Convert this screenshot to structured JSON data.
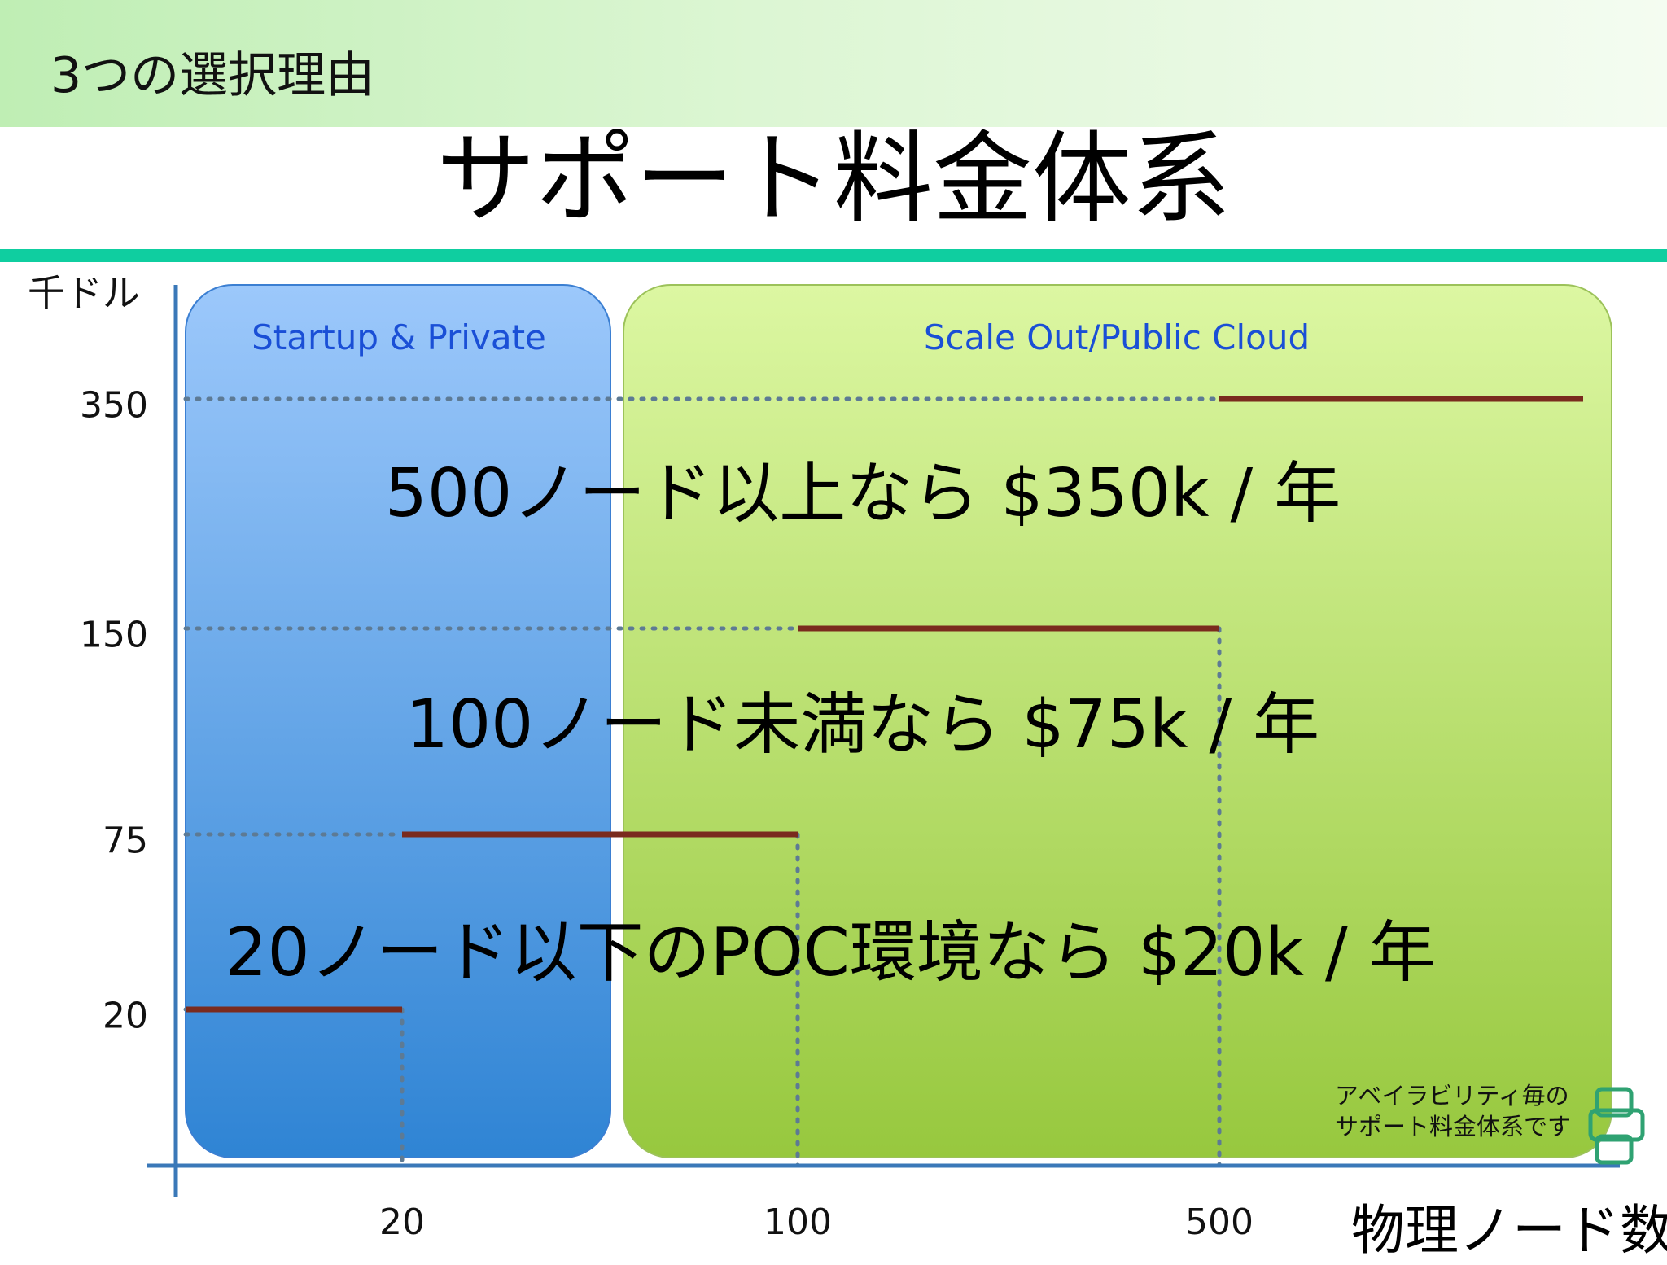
{
  "header": {
    "section_label": "3つの選択理由",
    "title": "サポート料金体系"
  },
  "chart_data": {
    "type": "line",
    "step": true,
    "xlabel": "物理ノード数",
    "ylabel": "千ドル",
    "x_ticks": [
      20,
      100,
      500
    ],
    "y_ticks": [
      20,
      75,
      150,
      350
    ],
    "grid": "dotted reference lines",
    "regions": [
      {
        "label": "Startup & Private",
        "color": "#4a97e8"
      },
      {
        "label": "Scale Out/Public Cloud",
        "color": "#b4dc6b"
      }
    ],
    "series": [
      {
        "color": "#7a2b1e",
        "segments": [
          {
            "x_from": "0",
            "x_to": "20",
            "y": 20
          },
          {
            "x_from": "20",
            "x_to": "100",
            "y": 75
          },
          {
            "x_from": "100",
            "x_to": "500",
            "y": 150
          },
          {
            "x_from": "500",
            "x_to": "max",
            "y": 350
          }
        ]
      }
    ],
    "annotations": [
      "500ノード以上なら $350k / 年",
      "100ノード未満なら $75k / 年",
      "20ノード以下のPOC環境なら $20k / 年"
    ],
    "note_lines": [
      "アベイラビリティ毎の",
      "サポート料金体系です"
    ]
  },
  "icon": "stacked-boxes-icon"
}
